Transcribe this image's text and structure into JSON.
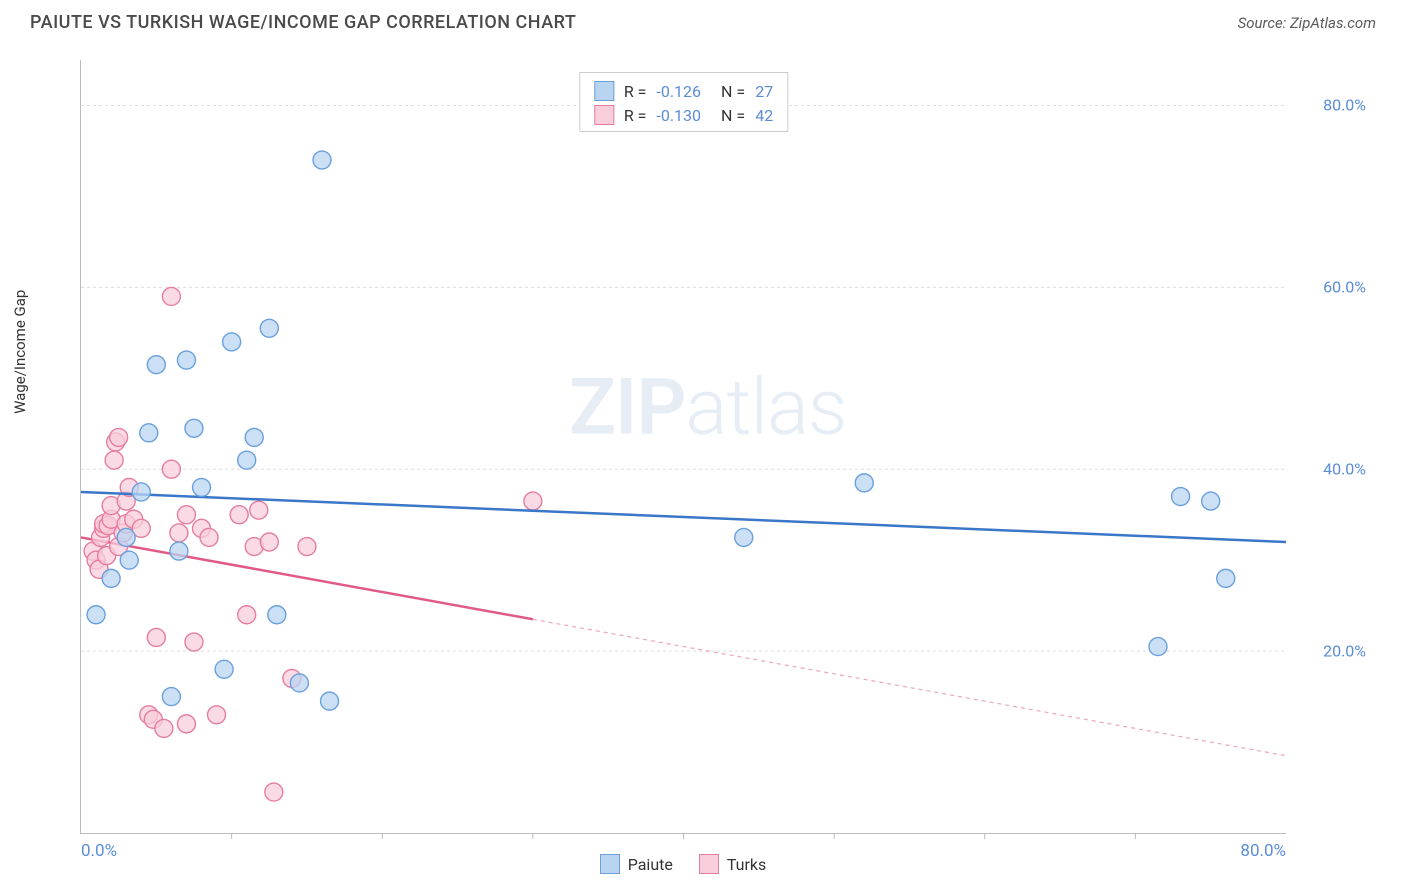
{
  "title": "PAIUTE VS TURKISH WAGE/INCOME GAP CORRELATION CHART",
  "source": "Source: ZipAtlas.com",
  "ylabel": "Wage/Income Gap",
  "watermark_bold": "ZIP",
  "watermark_rest": "atlas",
  "chart": {
    "type": "scatter",
    "xlim": [
      0,
      80
    ],
    "ylim": [
      0,
      85
    ],
    "yticks": [
      20,
      40,
      60,
      80
    ],
    "ytick_labels": [
      "20.0%",
      "40.0%",
      "60.0%",
      "80.0%"
    ],
    "xticks_major": [
      0,
      80
    ],
    "xtick_labels": [
      "0.0%",
      "80.0%"
    ],
    "xticks_minor": [
      10,
      20,
      30,
      40,
      50,
      60,
      70
    ],
    "grid_color": "#dddddd",
    "tick_label_color": "#5a8dd6",
    "background_color": "#ffffff",
    "marker_radius": 9,
    "marker_stroke_width": 1.4
  },
  "series": {
    "paiute": {
      "label": "Paiute",
      "R": "-0.126",
      "N": "27",
      "color_fill": "#b9d4f1",
      "color_stroke": "#6aa0dd",
      "line_color": "#3a77c9",
      "trend": {
        "x0": 0,
        "y0": 37.5,
        "x1": 80,
        "y1": 32.0
      },
      "trend_dashed_from_x": null,
      "points": [
        [
          1.0,
          24.0
        ],
        [
          2.0,
          28.0
        ],
        [
          3.0,
          32.5
        ],
        [
          3.2,
          30.0
        ],
        [
          4.0,
          37.5
        ],
        [
          4.5,
          44.0
        ],
        [
          5.0,
          51.5
        ],
        [
          6.0,
          15.0
        ],
        [
          6.5,
          31.0
        ],
        [
          7.0,
          52.0
        ],
        [
          7.5,
          44.5
        ],
        [
          8.0,
          38.0
        ],
        [
          9.5,
          18.0
        ],
        [
          10.0,
          54.0
        ],
        [
          11.0,
          41.0
        ],
        [
          11.5,
          43.5
        ],
        [
          12.5,
          55.5
        ],
        [
          13.0,
          24.0
        ],
        [
          14.5,
          16.5
        ],
        [
          16.0,
          74.0
        ],
        [
          16.5,
          14.5
        ],
        [
          44.0,
          32.5
        ],
        [
          52.0,
          38.5
        ],
        [
          71.5,
          20.5
        ],
        [
          73.0,
          37.0
        ],
        [
          75.0,
          36.5
        ],
        [
          76.0,
          28.0
        ]
      ]
    },
    "turks": {
      "label": "Turks",
      "R": "-0.130",
      "N": "42",
      "color_fill": "#f8cedb",
      "color_stroke": "#e67da0",
      "line_color": "#e15a86",
      "trend": {
        "x0": 0,
        "y0": 32.5,
        "x1": 80,
        "y1": 8.5
      },
      "trend_dashed_from_x": 30,
      "points": [
        [
          0.8,
          31.0
        ],
        [
          1.0,
          30.0
        ],
        [
          1.2,
          29.0
        ],
        [
          1.3,
          32.5
        ],
        [
          1.5,
          33.5
        ],
        [
          1.5,
          34.0
        ],
        [
          1.7,
          30.5
        ],
        [
          1.8,
          33.8
        ],
        [
          2.0,
          34.5
        ],
        [
          2.0,
          36.0
        ],
        [
          2.2,
          41.0
        ],
        [
          2.3,
          43.0
        ],
        [
          2.5,
          31.5
        ],
        [
          2.5,
          43.5
        ],
        [
          2.8,
          33.0
        ],
        [
          3.0,
          34.0
        ],
        [
          3.0,
          36.5
        ],
        [
          3.2,
          38.0
        ],
        [
          3.5,
          34.5
        ],
        [
          4.0,
          33.5
        ],
        [
          4.5,
          13.0
        ],
        [
          4.8,
          12.5
        ],
        [
          5.0,
          21.5
        ],
        [
          5.5,
          11.5
        ],
        [
          6.0,
          40.0
        ],
        [
          6.0,
          59.0
        ],
        [
          6.5,
          33.0
        ],
        [
          7.0,
          35.0
        ],
        [
          7.0,
          12.0
        ],
        [
          7.5,
          21.0
        ],
        [
          8.0,
          33.5
        ],
        [
          8.5,
          32.5
        ],
        [
          9.0,
          13.0
        ],
        [
          10.5,
          35.0
        ],
        [
          11.0,
          24.0
        ],
        [
          11.5,
          31.5
        ],
        [
          11.8,
          35.5
        ],
        [
          12.5,
          32.0
        ],
        [
          12.8,
          4.5
        ],
        [
          14.0,
          17.0
        ],
        [
          15.0,
          31.5
        ],
        [
          30.0,
          36.5
        ]
      ]
    }
  },
  "legend_bottom": [
    "Paiute",
    "Turks"
  ]
}
